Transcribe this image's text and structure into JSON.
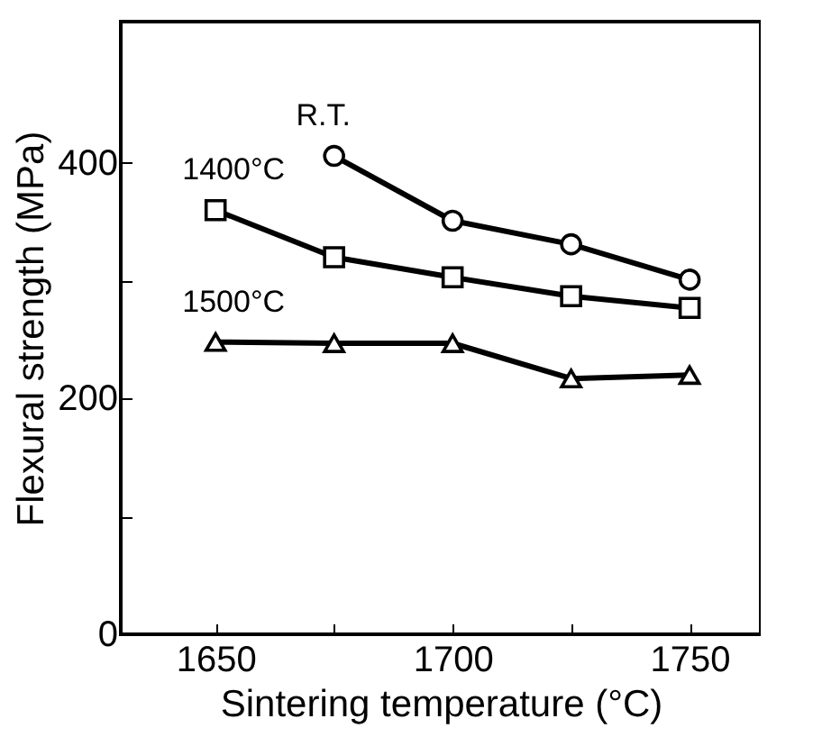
{
  "chart_data": {
    "type": "line",
    "xlabel": "Sintering temperature (°C)",
    "ylabel": "Flexural strength (MPa)",
    "x": [
      1650,
      1675,
      1700,
      1725,
      1750
    ],
    "series": [
      {
        "name": "R.T.",
        "color": "#000000",
        "marker": "circle",
        "values": [
          null,
          406,
          351,
          331,
          301
        ]
      },
      {
        "name": "1400°C",
        "color": "#000000",
        "marker": "square",
        "values": [
          360,
          320,
          303,
          287,
          277
        ]
      },
      {
        "name": "1500°C",
        "color": "#000000",
        "marker": "triangle",
        "values": [
          248,
          247,
          247,
          217,
          220
        ]
      }
    ],
    "xlim": [
      1630,
      1765
    ],
    "xticks": [
      1650,
      {
        "value": 1675,
        "label": null
      },
      1700,
      {
        "value": 1725,
        "label": null
      },
      1750
    ],
    "ylim": [
      0,
      520
    ],
    "yticks": [
      0,
      {
        "value": 100,
        "label": null
      },
      200,
      {
        "value": 300,
        "label": null
      },
      400
    ],
    "grid": false,
    "line_style": "solid"
  }
}
